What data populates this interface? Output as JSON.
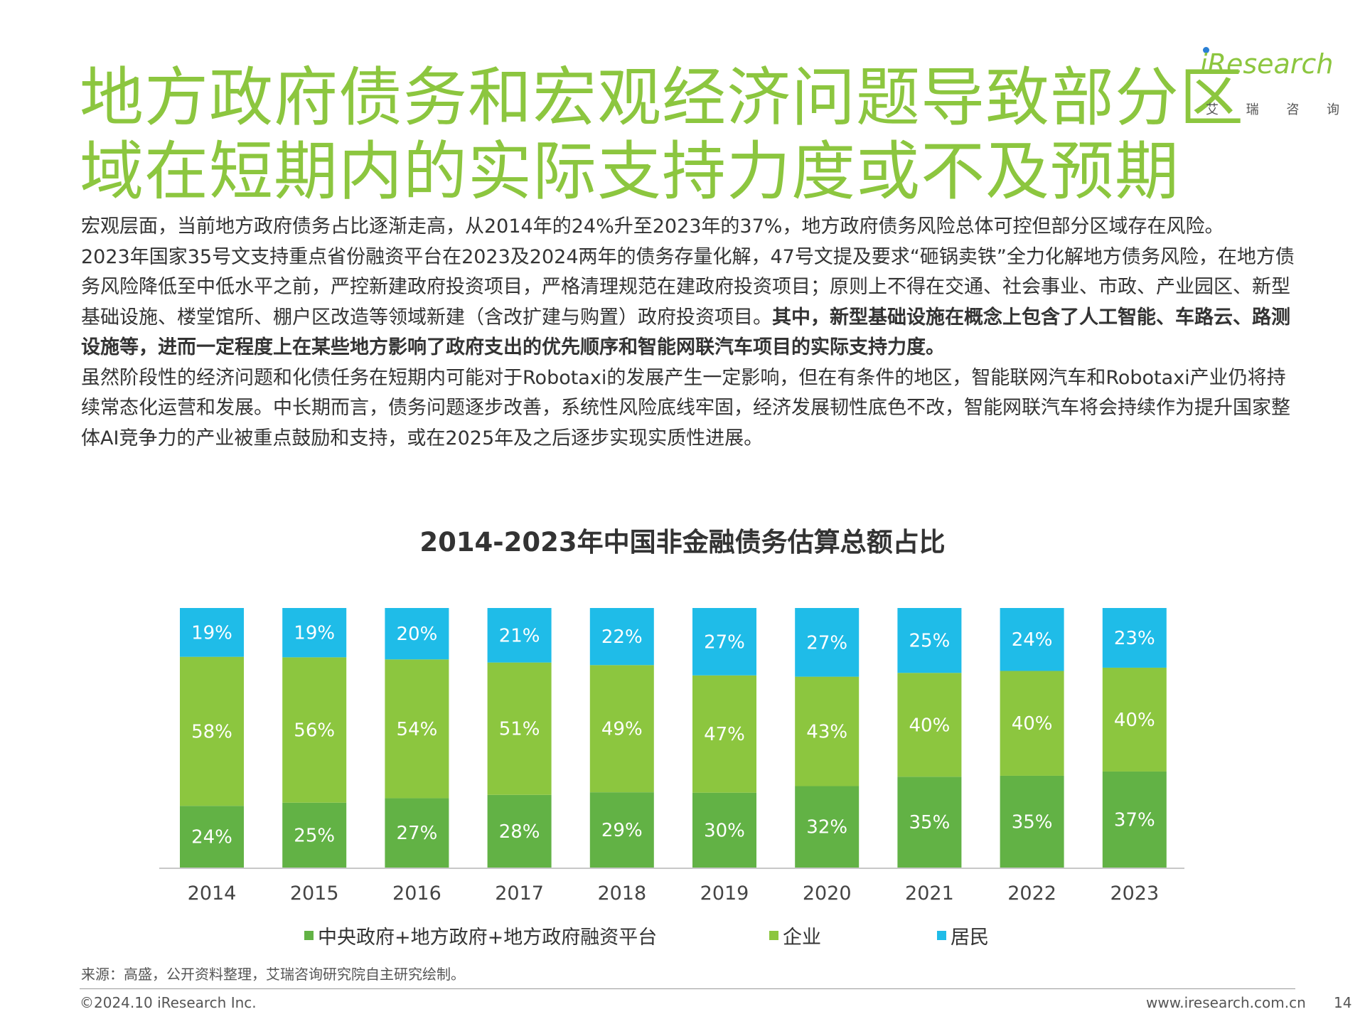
{
  "header": {
    "title_line1": "地方政府债务和宏观经济问题导致部分区",
    "title_line2": "域在短期内的实际支持力度或不及预期",
    "logo_text": "iResearch",
    "logo_cn": [
      "艾",
      "瑞",
      "咨",
      "询"
    ]
  },
  "body": {
    "p1": "宏观层面，当前地方政府债务占比逐渐走高，从2014年的24%升至2023年的37%，地方政府债务风险总体可控但部分区域存在风险。",
    "p2_normal": "2023年国家35号文支持重点省份融资平台在2023及2024两年的债务存量化解，47号文提及要求“砸锅卖铁”全力化解地方债务风险，在地方债务风险降低至中低水平之前，严控新建政府投资项目，严格清理规范在建政府投资项目；原则上不得在交通、社会事业、市政、产业园区、新型基础设施、楼堂馆所、棚户区改造等领域新建（含改扩建与购置）政府投资项目。",
    "p2_bold": "其中，新型基础设施在概念上包含了人工智能、车路云、路测设施等，进而一定程度上在某些地方影响了政府支出的优先顺序和智能网联汽车项目的实际支持力度。",
    "p3": "虽然阶段性的经济问题和化债任务在短期内可能对于Robotaxi的发展产生一定影响，但在有条件的地区，智能联网汽车和Robotaxi产业仍将持续常态化运营和发展。中长期而言，债务问题逐步改善，系统性风险底线牢固，经济发展韧性底色不改，智能网联汽车将会持续作为提升国家整体AI竞争力的产业被重点鼓励和支持，或在2025年及之后逐步实现实质性进展。"
  },
  "chart_data": {
    "type": "bar",
    "stacked": true,
    "title": "2014-2023年中国非金融债务估算总额占比",
    "categories": [
      "2014",
      "2015",
      "2016",
      "2017",
      "2018",
      "2019",
      "2020",
      "2021",
      "2022",
      "2023"
    ],
    "series": [
      {
        "name": "中央政府+地方政府+地方政府融资平台",
        "color": "#62b245",
        "values": [
          24,
          25,
          27,
          28,
          29,
          30,
          32,
          35,
          35,
          37
        ],
        "labels": [
          "24%",
          "25%",
          "27%",
          "28%",
          "29%",
          "30%",
          "32%",
          "35%",
          "35%",
          "37%"
        ]
      },
      {
        "name": "企业",
        "color": "#8cc63f",
        "values": [
          58,
          56,
          54,
          51,
          49,
          47,
          43,
          40,
          40,
          40
        ],
        "labels": [
          "58%",
          "56%",
          "54%",
          "51%",
          "49%",
          "47%",
          "43%",
          "40%",
          "40%",
          "40%"
        ]
      },
      {
        "name": "居民",
        "color": "#1fbce8",
        "values": [
          19,
          19,
          20,
          21,
          22,
          27,
          27,
          25,
          24,
          23
        ],
        "labels": [
          "19%",
          "19%",
          "20%",
          "21%",
          "22%",
          "27%",
          "27%",
          "25%",
          "24%",
          "23%"
        ]
      }
    ],
    "ylim": [
      0,
      100
    ],
    "legend_position": "bottom"
  },
  "footer": {
    "source": "来源：高盛，公开资料整理，艾瑞咨询研究院自主研究绘制。",
    "copyright": "©2024.10 iResearch Inc.",
    "website": "www.iresearch.com.cn",
    "page_number": "14"
  }
}
